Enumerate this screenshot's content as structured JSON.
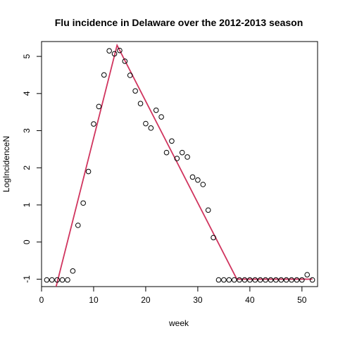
{
  "chart_data": {
    "type": "scatter",
    "title": "Flu incidence in Delaware over the 2012-2013 season",
    "xlabel": "week",
    "ylabel": "LogIncidenceN",
    "xlim": [
      0,
      53
    ],
    "ylim": [
      -1.2,
      5.4
    ],
    "xticks": [
      0,
      10,
      20,
      30,
      40,
      50
    ],
    "yticks": [
      -1,
      0,
      1,
      2,
      3,
      4,
      5
    ],
    "grid": false,
    "series": [
      {
        "type": "points",
        "x": [
          1,
          2,
          3,
          4,
          5,
          6,
          7,
          8,
          9,
          10,
          11,
          12,
          13,
          14,
          15,
          16,
          17,
          18,
          19,
          20,
          21,
          22,
          23,
          24,
          25,
          26,
          27,
          28,
          29,
          30,
          31,
          32,
          33,
          34,
          35,
          36,
          37,
          38,
          39,
          40,
          41,
          42,
          43,
          44,
          45,
          46,
          47,
          48,
          49,
          50,
          51,
          52
        ],
        "y": [
          -1.02,
          -1.02,
          -1.02,
          -1.02,
          -1.02,
          -0.78,
          0.45,
          1.05,
          1.9,
          3.18,
          3.65,
          4.5,
          5.15,
          5.07,
          5.16,
          4.87,
          4.49,
          4.07,
          3.73,
          3.19,
          3.07,
          3.55,
          3.37,
          2.41,
          2.72,
          2.25,
          2.41,
          2.29,
          1.75,
          1.67,
          1.55,
          0.86,
          0.12,
          -1.02,
          -1.02,
          -1.02,
          -1.02,
          -1.02,
          -1.02,
          -1.02,
          -1.02,
          -1.02,
          -1.02,
          -1.02,
          -1.02,
          -1.02,
          -1.02,
          -1.02,
          -1.02,
          -1.02,
          -0.88,
          -1.02
        ],
        "color": "#000000"
      },
      {
        "type": "line",
        "x": [
          2.8,
          14.5,
          37.5,
          52
        ],
        "y": [
          -1.2,
          5.3,
          -1.0,
          -1.0
        ],
        "color": "#d0345e"
      }
    ]
  }
}
